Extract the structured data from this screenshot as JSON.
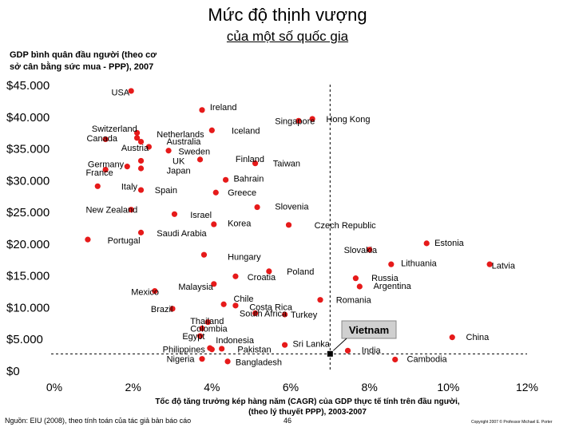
{
  "page": {
    "title": "Mức độ thịnh vượng",
    "subtitle": "của một số quốc gia",
    "source": "Nguồn: EIU (2008), theo tính toán của tác giả bản báo cáo",
    "page_number": "46",
    "copyright": "Copyright 2007 © Professor Michael E. Porter"
  },
  "chart_data": {
    "type": "scatter",
    "title": "Mức độ thịnh vượng của một số quốc gia",
    "ylabel_lines": [
      "GDP bình quân đầu người (theo cơ",
      "sở cân bằng sức mua - PPP), 2007"
    ],
    "xlabel_lines": [
      "Tốc độ tăng trưởng kép hàng năm (CAGR) của GDP thực tế tính trên đầu người,",
      "(theo lý thuyết PPP), 2003-2007"
    ],
    "xlim": [
      0,
      12
    ],
    "ylim": [
      0,
      45000
    ],
    "x_ticks": [
      0,
      2,
      4,
      6,
      8,
      10,
      12
    ],
    "x_tick_labels": [
      "0%",
      "2%",
      "4%",
      "6%",
      "8%",
      "10%",
      "12%"
    ],
    "y_ticks": [
      0,
      5000,
      10000,
      15000,
      20000,
      25000,
      30000,
      35000,
      40000,
      45000
    ],
    "y_tick_labels": [
      "$0",
      "$5.000",
      "$10.000",
      "$15.000",
      "$20.000",
      "$25.000",
      "$30.000",
      "$35.000",
      "$40.000",
      "$45.000"
    ],
    "reference_lines": {
      "x": 7.0,
      "y": 2600
    },
    "highlight": {
      "name": "Vietnam",
      "x": 7.0,
      "y": 2600
    },
    "points": [
      {
        "name": "USA",
        "x": 1.95,
        "y": 44000
      },
      {
        "name": "Ireland",
        "x": 3.75,
        "y": 41000
      },
      {
        "name": "Hong Kong",
        "x": 6.55,
        "y": 39600
      },
      {
        "name": "Singapore",
        "x": 6.2,
        "y": 39300
      },
      {
        "name": "Iceland",
        "x": 4.0,
        "y": 37800
      },
      {
        "name": "Switzerland",
        "x": 2.1,
        "y": 37400
      },
      {
        "name": "Canada",
        "x": 1.3,
        "y": 36400
      },
      {
        "name": "Netherlands",
        "x": 2.1,
        "y": 36600
      },
      {
        "name": "Australia",
        "x": 2.2,
        "y": 36000
      },
      {
        "name": "Austria",
        "x": 2.4,
        "y": 35200
      },
      {
        "name": "Sweden",
        "x": 2.9,
        "y": 34600
      },
      {
        "name": "Finland",
        "x": 3.7,
        "y": 33200
      },
      {
        "name": "UK",
        "x": 2.2,
        "y": 33000
      },
      {
        "name": "Taiwan",
        "x": 5.1,
        "y": 32600
      },
      {
        "name": "Germany",
        "x": 1.85,
        "y": 32100
      },
      {
        "name": "Japan",
        "x": 2.2,
        "y": 31800
      },
      {
        "name": "France",
        "x": 1.3,
        "y": 31600
      },
      {
        "name": "Bahrain",
        "x": 4.35,
        "y": 30000
      },
      {
        "name": "Italy",
        "x": 1.1,
        "y": 29000
      },
      {
        "name": "Spain",
        "x": 2.2,
        "y": 28400
      },
      {
        "name": "Greece",
        "x": 4.1,
        "y": 28000
      },
      {
        "name": "Slovenia",
        "x": 5.15,
        "y": 25700
      },
      {
        "name": "New Zealand",
        "x": 1.95,
        "y": 25300
      },
      {
        "name": "Israel",
        "x": 3.05,
        "y": 24600
      },
      {
        "name": "Korea",
        "x": 4.05,
        "y": 23000
      },
      {
        "name": "Czech Republic",
        "x": 5.95,
        "y": 22900
      },
      {
        "name": "Saudi Arabia",
        "x": 2.2,
        "y": 21700
      },
      {
        "name": "Portugal",
        "x": 0.85,
        "y": 20600
      },
      {
        "name": "Estonia",
        "x": 9.45,
        "y": 20000
      },
      {
        "name": "Slovakia",
        "x": 8.0,
        "y": 19000
      },
      {
        "name": "Hungary",
        "x": 3.8,
        "y": 18200
      },
      {
        "name": "Lithuania",
        "x": 8.55,
        "y": 16700
      },
      {
        "name": "Latvia",
        "x": 11.05,
        "y": 16700
      },
      {
        "name": "Poland",
        "x": 5.45,
        "y": 15600
      },
      {
        "name": "Croatia",
        "x": 4.6,
        "y": 14800
      },
      {
        "name": "Russia",
        "x": 7.65,
        "y": 14500
      },
      {
        "name": "Argentina",
        "x": 7.75,
        "y": 13200
      },
      {
        "name": "Malaysia",
        "x": 4.05,
        "y": 13600
      },
      {
        "name": "Mexico",
        "x": 2.55,
        "y": 12500
      },
      {
        "name": "Romania",
        "x": 6.75,
        "y": 11100
      },
      {
        "name": "Chile",
        "x": 4.3,
        "y": 10400
      },
      {
        "name": "Costa Rica",
        "x": 4.6,
        "y": 10200
      },
      {
        "name": "Brazil",
        "x": 3.0,
        "y": 9700
      },
      {
        "name": "Turkey",
        "x": 5.85,
        "y": 8800
      },
      {
        "name": "South Africa",
        "x": 5.1,
        "y": 9000
      },
      {
        "name": "Thailand",
        "x": 3.9,
        "y": 7600
      },
      {
        "name": "Colombia",
        "x": 3.75,
        "y": 6600
      },
      {
        "name": "Egypt",
        "x": 3.7,
        "y": 5400
      },
      {
        "name": "China",
        "x": 10.1,
        "y": 5200
      },
      {
        "name": "Indonesia",
        "x": 3.95,
        "y": 3500
      },
      {
        "name": "Philippines",
        "x": 4.0,
        "y": 3300
      },
      {
        "name": "Pakistan",
        "x": 4.25,
        "y": 3400
      },
      {
        "name": "Sri Lanka",
        "x": 5.85,
        "y": 4000
      },
      {
        "name": "India",
        "x": 7.45,
        "y": 3100
      },
      {
        "name": "Nigeria",
        "x": 3.75,
        "y": 1800
      },
      {
        "name": "Bangladesh",
        "x": 4.4,
        "y": 1400
      },
      {
        "name": "Cambodia",
        "x": 8.65,
        "y": 1700
      }
    ],
    "labels": [
      {
        "text": "USA",
        "x": 1.45,
        "y": 43800
      },
      {
        "text": "Ireland",
        "x": 3.95,
        "y": 41500
      },
      {
        "text": "Hong Kong",
        "x": 6.9,
        "y": 39600
      },
      {
        "text": "Singapore",
        "x": 5.6,
        "y": 39300
      },
      {
        "text": "Iceland",
        "x": 4.5,
        "y": 37800
      },
      {
        "text": "Switzerland",
        "x": 0.95,
        "y": 38100
      },
      {
        "text": "Canada",
        "x": 0.82,
        "y": 36600
      },
      {
        "text": "Netherlands",
        "x": 2.6,
        "y": 37200
      },
      {
        "text": "Australia",
        "x": 2.85,
        "y": 36100
      },
      {
        "text": "Austria",
        "x": 1.7,
        "y": 35100
      },
      {
        "text": "Sweden",
        "x": 3.15,
        "y": 34500
      },
      {
        "text": "Finland",
        "x": 4.6,
        "y": 33300
      },
      {
        "text": "UK",
        "x": 3.0,
        "y": 33000
      },
      {
        "text": "Taiwan",
        "x": 5.55,
        "y": 32600
      },
      {
        "text": "Germany",
        "x": 0.85,
        "y": 32500
      },
      {
        "text": "Japan",
        "x": 2.85,
        "y": 31500
      },
      {
        "text": "France",
        "x": 0.8,
        "y": 31200
      },
      {
        "text": "Bahrain",
        "x": 4.55,
        "y": 30200
      },
      {
        "text": "Italy",
        "x": 1.7,
        "y": 29000
      },
      {
        "text": "Spain",
        "x": 2.55,
        "y": 28400
      },
      {
        "text": "Greece",
        "x": 4.4,
        "y": 28000
      },
      {
        "text": "Slovenia",
        "x": 5.6,
        "y": 25800
      },
      {
        "text": "New Zealand",
        "x": 0.8,
        "y": 25300
      },
      {
        "text": "Israel",
        "x": 3.45,
        "y": 24500
      },
      {
        "text": "Korea",
        "x": 4.4,
        "y": 23200
      },
      {
        "text": "Czech Republic",
        "x": 6.6,
        "y": 22900
      },
      {
        "text": "Saudi Arabia",
        "x": 2.6,
        "y": 21600
      },
      {
        "text": "Portugal",
        "x": 1.35,
        "y": 20500
      },
      {
        "text": "Estonia",
        "x": 9.65,
        "y": 20100
      },
      {
        "text": "Slovakia",
        "x": 7.35,
        "y": 19000
      },
      {
        "text": "Hungary",
        "x": 4.4,
        "y": 17900
      },
      {
        "text": "Lithuania",
        "x": 8.8,
        "y": 16900
      },
      {
        "text": "Latvia",
        "x": 11.1,
        "y": 16500
      },
      {
        "text": "Poland",
        "x": 5.9,
        "y": 15600
      },
      {
        "text": "Croatia",
        "x": 4.9,
        "y": 14700
      },
      {
        "text": "Russia",
        "x": 8.05,
        "y": 14600
      },
      {
        "text": "Argentina",
        "x": 8.1,
        "y": 13300
      },
      {
        "text": "Malaysia",
        "x": 3.15,
        "y": 13200
      },
      {
        "text": "Mexico",
        "x": 1.95,
        "y": 12400
      },
      {
        "text": "Romania",
        "x": 7.15,
        "y": 11100
      },
      {
        "text": "Chile",
        "x": 4.55,
        "y": 11300
      },
      {
        "text": "Costa Rica",
        "x": 4.95,
        "y": 10000
      },
      {
        "text": "Brazil",
        "x": 2.45,
        "y": 9700
      },
      {
        "text": "Turkey",
        "x": 6.0,
        "y": 8800
      },
      {
        "text": "South Africa",
        "x": 4.7,
        "y": 9000
      },
      {
        "text": "Thailand",
        "x": 3.45,
        "y": 7800
      },
      {
        "text": "Colombia",
        "x": 3.45,
        "y": 6600
      },
      {
        "text": "Egypt",
        "x": 3.25,
        "y": 5400
      },
      {
        "text": "China",
        "x": 10.45,
        "y": 5300
      },
      {
        "text": "Indonesia",
        "x": 4.1,
        "y": 4800
      },
      {
        "text": "Philippines",
        "x": 2.75,
        "y": 3300
      },
      {
        "text": "Pakistan",
        "x": 4.65,
        "y": 3300
      },
      {
        "text": "Sri Lanka",
        "x": 6.05,
        "y": 4200
      },
      {
        "text": "India",
        "x": 7.8,
        "y": 3200
      },
      {
        "text": "Nigeria",
        "x": 2.85,
        "y": 1800
      },
      {
        "text": "Bangladesh",
        "x": 4.6,
        "y": 1300
      },
      {
        "text": "Cambodia",
        "x": 8.95,
        "y": 1800
      }
    ],
    "colors": {
      "point": "#e61a1a",
      "highlight_box": "#d0d0d0",
      "text": "#000000"
    }
  }
}
